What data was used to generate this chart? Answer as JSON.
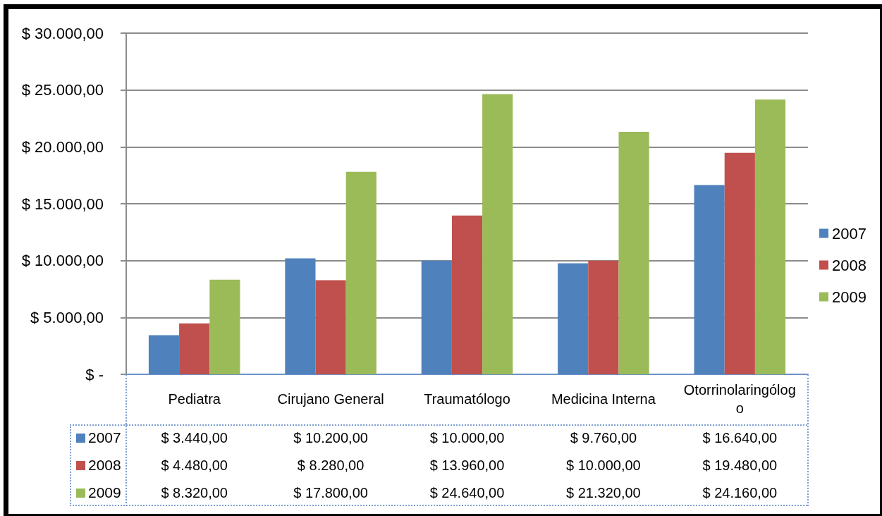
{
  "chart_data": {
    "type": "bar",
    "categories": [
      "Pediatra",
      "Cirujano General",
      "Traumatólogo",
      "Medicina Interna",
      "Otorrinolaringólogo"
    ],
    "series": [
      {
        "name": "2007",
        "color": "#4f81bd",
        "values": [
          3440,
          10200,
          10000,
          9760,
          16640
        ],
        "value_labels": [
          "$ 3.440,00",
          "$ 10.200,00",
          "$ 10.000,00",
          "$ 9.760,00",
          "$ 16.640,00"
        ]
      },
      {
        "name": "2008",
        "color": "#c0504d",
        "values": [
          4480,
          8280,
          13960,
          10000,
          19480
        ],
        "value_labels": [
          "$ 4.480,00",
          "$ 8.280,00",
          "$ 13.960,00",
          "$ 10.000,00",
          "$ 19.480,00"
        ]
      },
      {
        "name": "2009",
        "color": "#9bbb59",
        "values": [
          8320,
          17800,
          24640,
          21320,
          24160
        ],
        "value_labels": [
          "$ 8.320,00",
          "$ 17.800,00",
          "$ 24.640,00",
          "$ 21.320,00",
          "$ 24.160,00"
        ]
      }
    ],
    "ylim": [
      0,
      30000
    ],
    "yticks": [
      {
        "value": 0,
        "label": "$ -"
      },
      {
        "value": 5000,
        "label": "$ 5.000,00"
      },
      {
        "value": 10000,
        "label": "$ 10.000,00"
      },
      {
        "value": 15000,
        "label": "$ 15.000,00"
      },
      {
        "value": 20000,
        "label": "$ 20.000,00"
      },
      {
        "value": 25000,
        "label": "$ 25.000,00"
      },
      {
        "value": 30000,
        "label": "$ 30.000,00"
      }
    ],
    "grid": "y",
    "legend": "right"
  }
}
